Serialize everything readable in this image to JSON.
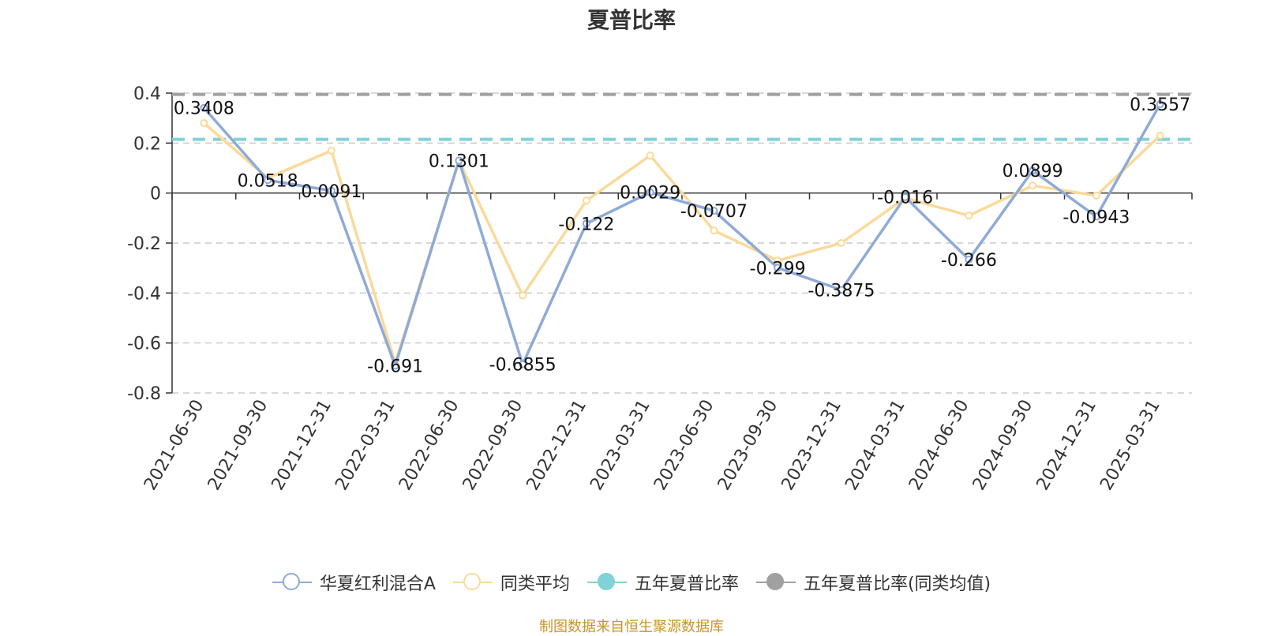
{
  "chart_data": {
    "type": "line",
    "title": "夏普比率",
    "categories": [
      "2021-06-30",
      "2021-09-30",
      "2021-12-31",
      "2022-03-31",
      "2022-06-30",
      "2022-09-30",
      "2022-12-31",
      "2023-03-31",
      "2023-06-30",
      "2023-09-30",
      "2023-12-31",
      "2024-03-31",
      "2024-06-30",
      "2024-09-30",
      "2024-12-31",
      "2025-03-31"
    ],
    "series": [
      {
        "name": "华夏红利混合A",
        "color": "#8eaad8",
        "values": [
          0.3408,
          0.0518,
          0.0091,
          -0.691,
          0.1301,
          -0.6855,
          -0.122,
          0.0029,
          -0.0707,
          -0.299,
          -0.3875,
          -0.016,
          -0.266,
          0.0899,
          -0.0943,
          0.3557
        ],
        "labels": [
          "0.3408",
          "0.0518",
          "0.0091",
          "-0.691",
          "0.1301",
          "-0.6855",
          "-0.122",
          "0.0029",
          "-0.0707",
          "-0.299",
          "-0.3875",
          "-0.016",
          "-0.266",
          "0.0899",
          "-0.0943",
          "0.3557"
        ]
      },
      {
        "name": "同类平均",
        "color": "#fbd99a",
        "values": [
          0.28,
          0.06,
          0.17,
          -0.68,
          0.13,
          -0.41,
          -0.03,
          0.15,
          -0.15,
          -0.27,
          -0.2,
          -0.02,
          -0.09,
          0.03,
          -0.01,
          0.23
        ]
      },
      {
        "name": "五年夏普比率",
        "color": "#7fd3d6",
        "reference_value": 0.215
      },
      {
        "name": "五年夏普比率(同类均值)",
        "color": "#a0a0a0",
        "reference_value": 0.395
      }
    ],
    "y_ticks": [
      "0.4",
      "0.2",
      "0",
      "-0.2",
      "-0.4",
      "-0.6",
      "-0.8"
    ],
    "ylim": [
      -0.8,
      0.4
    ],
    "xlabel": "",
    "ylabel": "",
    "grid": "horizontal dashed",
    "legend_position": "bottom"
  },
  "legend": [
    {
      "label": "华夏红利混合A",
      "color": "#8eaad8",
      "filled": false
    },
    {
      "label": "同类平均",
      "color": "#fbd99a",
      "filled": false
    },
    {
      "label": "五年夏普比率",
      "color": "#7fd3d6",
      "filled": true
    },
    {
      "label": "五年夏普比率(同类均值)",
      "color": "#a0a0a0",
      "filled": true
    }
  ],
  "source_text": "制图数据来自恒生聚源数据库"
}
